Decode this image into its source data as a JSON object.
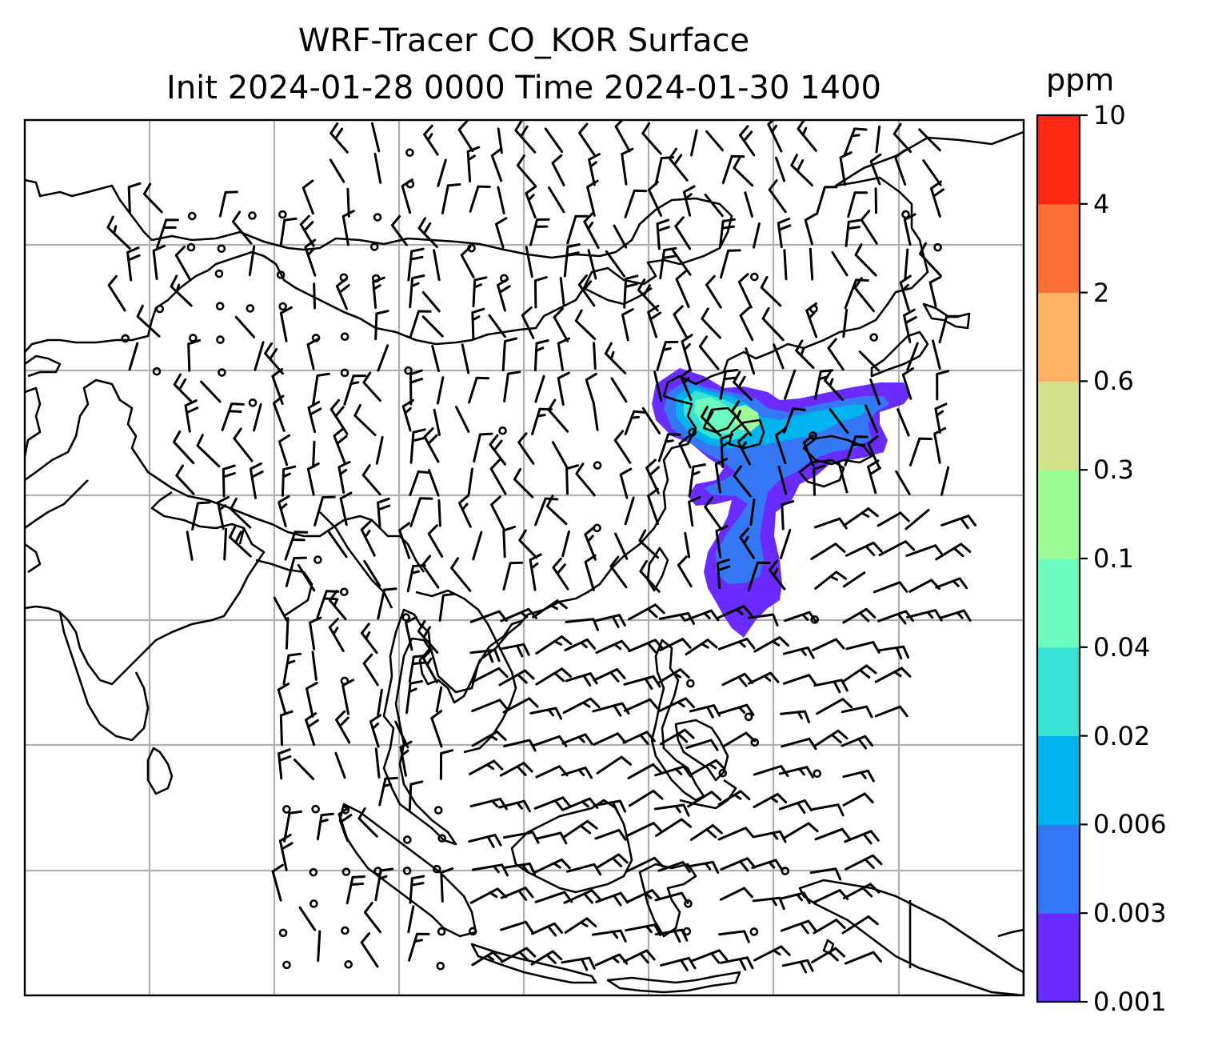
{
  "title": {
    "line1": "WRF-Tracer CO_KOR Surface",
    "line2": "Init 2024-01-28 0000 Time 2024-01-30 1400"
  },
  "colorbar": {
    "unit": "ppm",
    "levels": [
      "0.001",
      "0.003",
      "0.006",
      "0.02",
      "0.04",
      "0.1",
      "0.3",
      "0.6",
      "2",
      "4",
      "10"
    ],
    "colors": [
      "#6a2bff",
      "#3478f6",
      "#00b3ee",
      "#35e2d3",
      "#6cfcbf",
      "#9dfb98",
      "#d1e28a",
      "#fdb363",
      "#fd7038",
      "#ff2a14"
    ]
  },
  "style": {
    "coastline_color": "#000000",
    "grid_color": "#b0b0b0",
    "barb_color": "#000000"
  }
}
